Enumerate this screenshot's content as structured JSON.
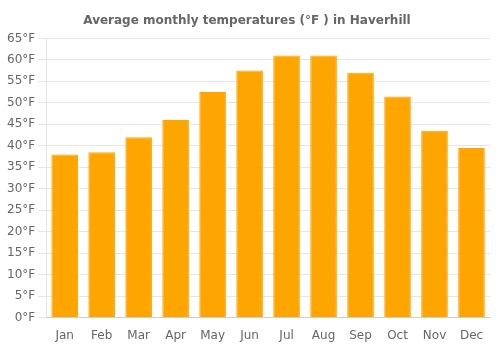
{
  "chart_data": {
    "type": "bar",
    "title": "Average monthly temperatures (°F ) in Haverhill",
    "categories": [
      "Jan",
      "Feb",
      "Mar",
      "Apr",
      "May",
      "Jun",
      "Jul",
      "Aug",
      "Sep",
      "Oct",
      "Nov",
      "Dec"
    ],
    "values": [
      38,
      38.5,
      42,
      46,
      52.5,
      57.5,
      61,
      61,
      57,
      51.5,
      43.5,
      39.5
    ],
    "color": "#FFA500",
    "ylim": [
      0,
      65
    ],
    "yticks": [
      {
        "value": 0,
        "label": "0°F"
      },
      {
        "value": 5,
        "label": "5°F"
      },
      {
        "value": 10,
        "label": "10°F"
      },
      {
        "value": 15,
        "label": "15°F"
      },
      {
        "value": 20,
        "label": "20°F"
      },
      {
        "value": 25,
        "label": "25°F"
      },
      {
        "value": 30,
        "label": "30°F"
      },
      {
        "value": 35,
        "label": "35°F"
      },
      {
        "value": 40,
        "label": "40°F"
      },
      {
        "value": 45,
        "label": "45°F"
      },
      {
        "value": 50,
        "label": "50°F"
      },
      {
        "value": 55,
        "label": "55°F"
      },
      {
        "value": 60,
        "label": "60°F"
      },
      {
        "value": 65,
        "label": "65°F"
      }
    ],
    "grid": true
  }
}
